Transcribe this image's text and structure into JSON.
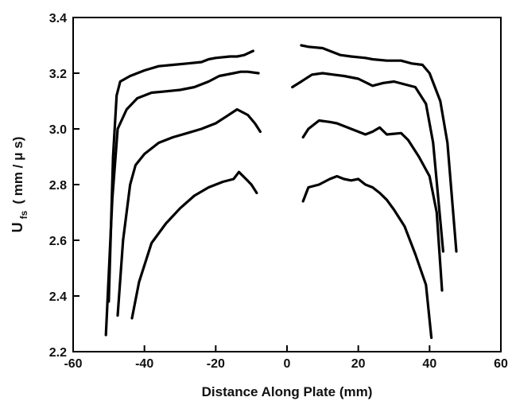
{
  "chart_data": {
    "type": "line",
    "title": "",
    "xlabel": "Distance Along Plate (mm)",
    "ylabel": {
      "main": "U",
      "subscript": "fs",
      "units": "( mm / μ s)"
    },
    "xlim": [
      -60,
      60
    ],
    "ylim": [
      2.2,
      3.4
    ],
    "x_ticks": [
      -60,
      -40,
      -20,
      0,
      20,
      40,
      60
    ],
    "y_ticks": [
      2.2,
      2.4,
      2.6,
      2.8,
      3.0,
      3.2,
      3.4
    ],
    "x_tick_labels": [
      "-60",
      "-40",
      "-20",
      "0",
      "20",
      "40",
      "60"
    ],
    "y_tick_labels": [
      "2.2",
      "2.4",
      "2.6",
      "2.8",
      "3.0",
      "3.2",
      "3.4"
    ],
    "grid": false,
    "legend": "none",
    "line_color": "#000000",
    "series": [
      {
        "points": [
          [
            -50.0,
            2.38
          ],
          [
            -48.8,
            2.9
          ],
          [
            -47.8,
            3.12
          ],
          [
            -46.8,
            3.17
          ],
          [
            -44,
            3.19
          ],
          [
            -40,
            3.21
          ],
          [
            -36,
            3.225
          ],
          [
            -32,
            3.23
          ],
          [
            -28,
            3.235
          ],
          [
            -24,
            3.24
          ],
          [
            -22,
            3.25
          ],
          [
            -20,
            3.255
          ],
          [
            -16,
            3.26
          ],
          [
            -14,
            3.26
          ],
          [
            -12,
            3.265
          ],
          [
            -9.5,
            3.28
          ],
          [
            4,
            3.3
          ],
          [
            6,
            3.295
          ],
          [
            10,
            3.29
          ],
          [
            12,
            3.28
          ],
          [
            15,
            3.265
          ],
          [
            18,
            3.26
          ],
          [
            22,
            3.255
          ],
          [
            24,
            3.25
          ],
          [
            28,
            3.245
          ],
          [
            32,
            3.245
          ],
          [
            35,
            3.235
          ],
          [
            38,
            3.23
          ],
          [
            40,
            3.2
          ],
          [
            43,
            3.1
          ],
          [
            45,
            2.95
          ],
          [
            47.5,
            2.56
          ]
        ]
      },
      {
        "points": [
          [
            -50.8,
            2.26
          ],
          [
            -49,
            2.75
          ],
          [
            -47.5,
            3.0
          ],
          [
            -45,
            3.07
          ],
          [
            -42,
            3.11
          ],
          [
            -38,
            3.13
          ],
          [
            -34,
            3.135
          ],
          [
            -30,
            3.14
          ],
          [
            -26,
            3.15
          ],
          [
            -22,
            3.17
          ],
          [
            -19,
            3.19
          ],
          [
            -15,
            3.2
          ],
          [
            -13,
            3.205
          ],
          [
            -11,
            3.205
          ],
          [
            -8,
            3.2
          ],
          [
            1.5,
            3.15
          ],
          [
            4,
            3.17
          ],
          [
            7,
            3.195
          ],
          [
            10,
            3.2
          ],
          [
            13,
            3.195
          ],
          [
            16,
            3.19
          ],
          [
            20,
            3.18
          ],
          [
            24,
            3.155
          ],
          [
            27,
            3.165
          ],
          [
            30,
            3.17
          ],
          [
            33,
            3.16
          ],
          [
            36,
            3.15
          ],
          [
            39,
            3.09
          ],
          [
            41,
            2.95
          ],
          [
            43.8,
            2.56
          ]
        ]
      },
      {
        "points": [
          [
            -47.5,
            2.33
          ],
          [
            -46,
            2.6
          ],
          [
            -44,
            2.8
          ],
          [
            -42.5,
            2.87
          ],
          [
            -40,
            2.91
          ],
          [
            -36,
            2.95
          ],
          [
            -32,
            2.97
          ],
          [
            -28,
            2.985
          ],
          [
            -24,
            3.0
          ],
          [
            -20,
            3.02
          ],
          [
            -17,
            3.045
          ],
          [
            -14,
            3.07
          ],
          [
            -11,
            3.05
          ],
          [
            -9,
            3.02
          ],
          [
            -7.5,
            2.99
          ],
          [
            4.5,
            2.97
          ],
          [
            6,
            3.0
          ],
          [
            9,
            3.03
          ],
          [
            12,
            3.025
          ],
          [
            14,
            3.02
          ],
          [
            18,
            3.0
          ],
          [
            22,
            2.98
          ],
          [
            24,
            2.99
          ],
          [
            26,
            3.005
          ],
          [
            28,
            2.98
          ],
          [
            32,
            2.985
          ],
          [
            34,
            2.96
          ],
          [
            37,
            2.9
          ],
          [
            40,
            2.83
          ],
          [
            42,
            2.7
          ],
          [
            43.5,
            2.42
          ]
        ]
      },
      {
        "points": [
          [
            -43.5,
            2.32
          ],
          [
            -41.5,
            2.45
          ],
          [
            -38,
            2.59
          ],
          [
            -34,
            2.66
          ],
          [
            -30,
            2.715
          ],
          [
            -26,
            2.76
          ],
          [
            -22,
            2.79
          ],
          [
            -18,
            2.81
          ],
          [
            -15,
            2.82
          ],
          [
            -13.5,
            2.845
          ],
          [
            -11.5,
            2.82
          ],
          [
            -10,
            2.8
          ],
          [
            -8.5,
            2.77
          ],
          [
            4.5,
            2.74
          ],
          [
            6,
            2.79
          ],
          [
            9,
            2.8
          ],
          [
            12,
            2.82
          ],
          [
            14,
            2.83
          ],
          [
            16,
            2.82
          ],
          [
            18,
            2.815
          ],
          [
            20,
            2.82
          ],
          [
            22,
            2.8
          ],
          [
            24,
            2.79
          ],
          [
            26,
            2.77
          ],
          [
            28,
            2.745
          ],
          [
            30,
            2.71
          ],
          [
            33,
            2.65
          ],
          [
            36,
            2.55
          ],
          [
            39,
            2.44
          ],
          [
            40.5,
            2.25
          ]
        ]
      }
    ]
  }
}
